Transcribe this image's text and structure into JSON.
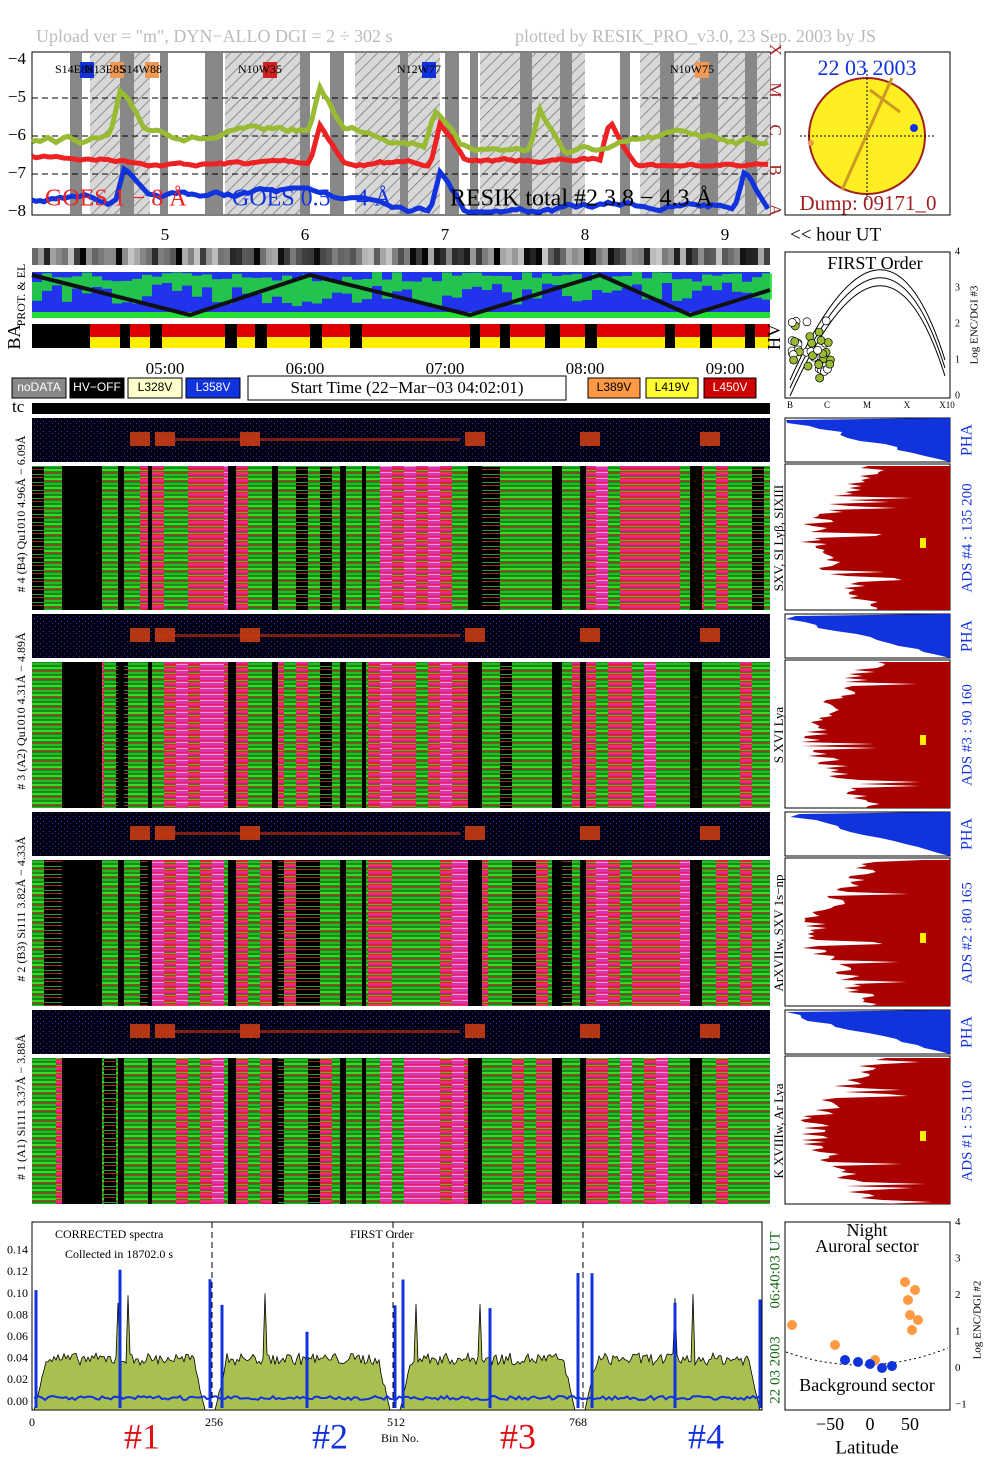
{
  "header": {
    "upload": "Upload ver = \"m\", DYN−ALLO DGI =   2 ÷ 302 s",
    "plotted": "plotted by RESIK_PRO_v3.0, 23 Sep. 2003 by JS"
  },
  "goes": {
    "yticks": [
      "−4",
      "−5",
      "−6",
      "−7",
      "−8"
    ],
    "classes": [
      "X",
      "M",
      "C",
      "B",
      "A"
    ],
    "regions": [
      "S14E88",
      "N13E85",
      "S14W88",
      "N10W35",
      "N12W77",
      "N10W75"
    ],
    "labels": [
      "GOES 1 − 8 Å",
      "GOES 0.5 − 4 Å",
      "RESIK total #2  3.8 − 4.3 Å"
    ],
    "hours": [
      "5",
      "6",
      "7",
      "8",
      "9"
    ],
    "hour_unit": "<< hour UT"
  },
  "sun": {
    "date": "22 03 2003",
    "dump": "Dump: 09171_0"
  },
  "orbit": {
    "prot": "PROT. & EL",
    "ba": "BA",
    "hv": "HV",
    "times": [
      "05:00",
      "06:00",
      "07:00",
      "08:00",
      "09:00"
    ]
  },
  "legend": {
    "left": [
      "noDATA",
      "HV−OFF",
      "L328V",
      "L358V"
    ],
    "start": "Start Time (22−Mar−03 04:02:01)",
    "right": [
      "L389V",
      "L419V",
      "L450V"
    ],
    "tc": "tc"
  },
  "first_order": {
    "title": "FIRST Order",
    "ylabel": "Log ENC/DGI #3",
    "yticks": [
      "0",
      "1",
      "2",
      "3",
      "4"
    ],
    "xticks": [
      "B",
      "C",
      "M",
      "X",
      "X10"
    ]
  },
  "detectors": [
    {
      "label": "# 4 (B4) Qu1010 4.96Å − 6.09Å",
      "lines": "SXV, SI Lyβ, SIXIII",
      "ads": "ADS #4 :   135 200",
      "pha": "PHA"
    },
    {
      "label": "# 3 (A2) Qu1010 4.31Å − 4.89Å",
      "lines": "S XVI Lya",
      "ads": "ADS #3 :   90 160",
      "pha": "PHA"
    },
    {
      "label": "# 2 (B3) Si111 3.82Å − 4.33Å",
      "lines": "ArXVIIw, SXV 1s−np",
      "ads": "ADS #2 :   80 165",
      "pha": "PHA"
    },
    {
      "label": "# 1 (A1) Si111 3.37Å − 3.88Å",
      "lines": "K XVIIIw, Ar Lya",
      "ads": "ADS #1 :   55 110",
      "pha": "PHA"
    }
  ],
  "spectrum": {
    "yticks": [
      "0.00",
      "0.02",
      "0.04",
      "0.06",
      "0.08",
      "0.10",
      "0.12",
      "0.14"
    ],
    "note1": "CORRECTED spectra",
    "note2": "Collected in 18702.0 s",
    "order": "FIRST Order",
    "xticks": [
      "0",
      "256",
      "512",
      "768"
    ],
    "xlabel": "Bin No.",
    "sectors": [
      "#1",
      "#2",
      "#3",
      "#4"
    ],
    "time": "06:40:03 UT",
    "date": "22 03 2003"
  },
  "latitude": {
    "night": "Night",
    "auroral": "Auroral sector",
    "background": "Background sector",
    "xlabel": "Latitude",
    "xticks": [
      "−50",
      "0",
      "50"
    ],
    "ylabel": "Log ENC/DGI #2",
    "yticks": [
      "−1",
      "0",
      "1",
      "2",
      "3",
      "4"
    ]
  }
}
